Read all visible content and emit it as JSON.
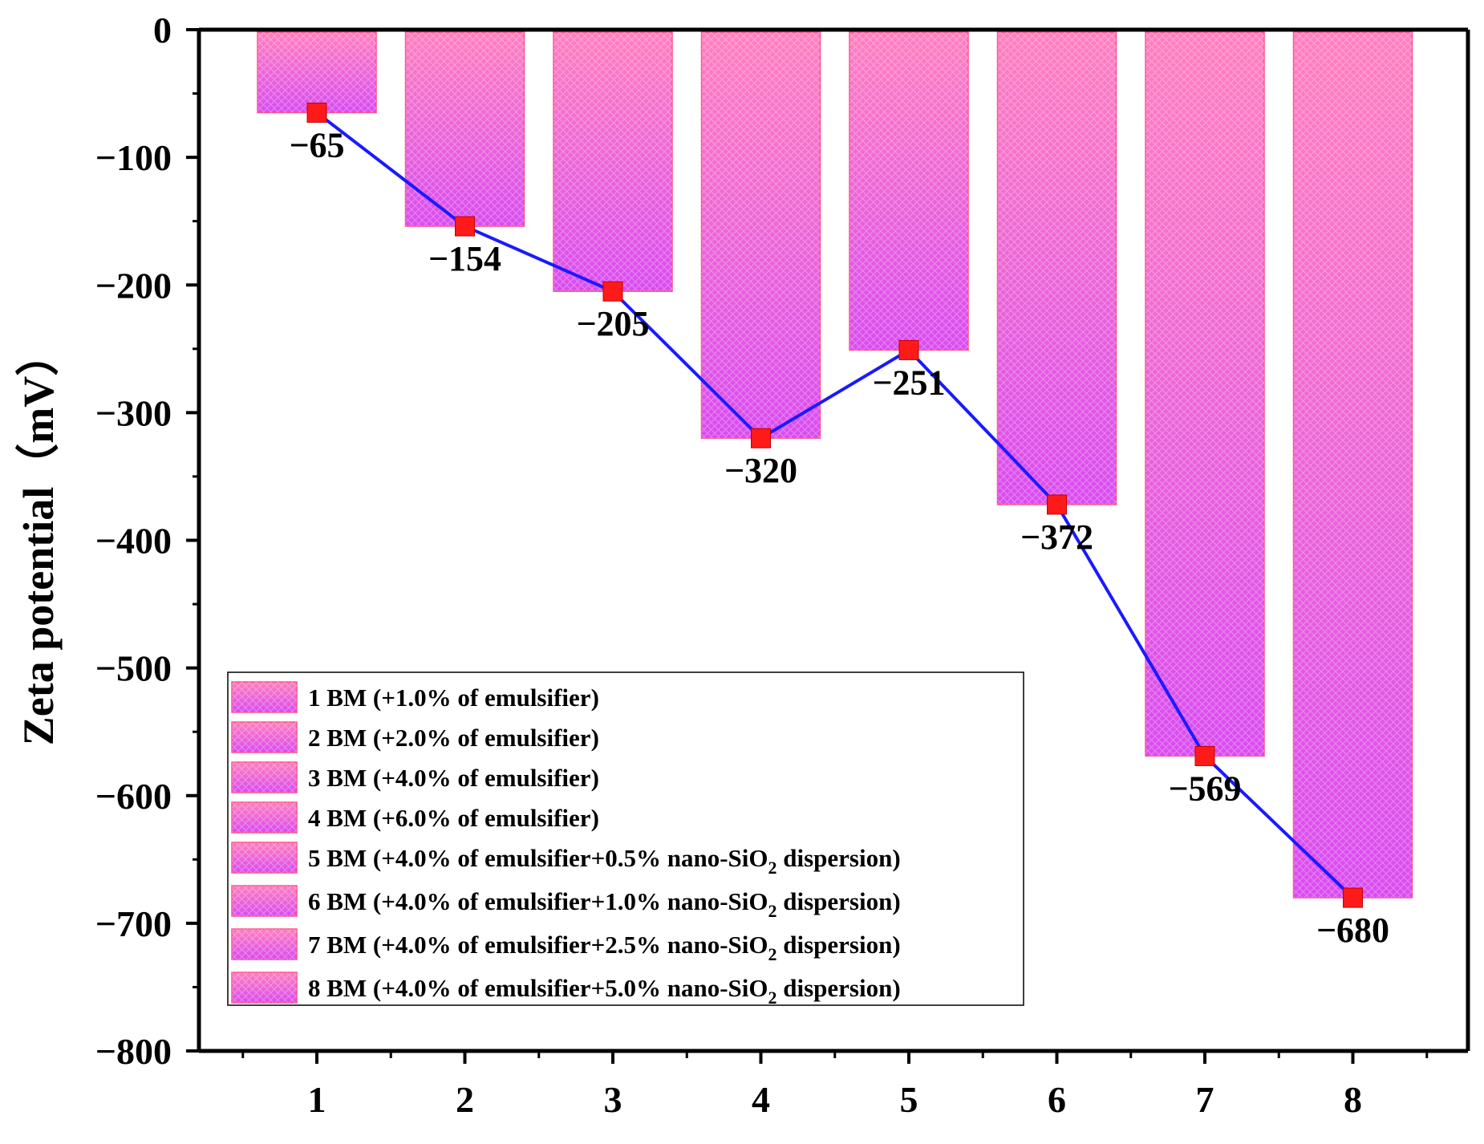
{
  "chart_data": {
    "type": "bar",
    "title": "",
    "xlabel": "",
    "ylabel": "Zeta potential（mV）",
    "ylim": [
      -800,
      0
    ],
    "yticks": [
      0,
      -100,
      -200,
      -300,
      -400,
      -500,
      -600,
      -700,
      -800
    ],
    "ytick_labels": [
      "0",
      "−100",
      "−200",
      "−300",
      "−400",
      "−500",
      "−600",
      "−700",
      "−800"
    ],
    "categories": [
      "1",
      "2",
      "3",
      "4",
      "5",
      "6",
      "7",
      "8"
    ],
    "values": [
      -65,
      -154,
      -205,
      -320,
      -251,
      -372,
      -569,
      -680
    ],
    "data_labels": [
      "−65",
      "−154",
      "−205",
      "−320",
      "−251",
      "−372",
      "−569",
      "−680"
    ],
    "overlay_line": {
      "type": "line",
      "marker": "square",
      "values": [
        -65,
        -154,
        -205,
        -320,
        -251,
        -372,
        -569,
        -680
      ]
    },
    "legend": {
      "placement": "lower-left",
      "entries": [
        {
          "number": "1",
          "text": " BM (+1.0% of emulsifier)"
        },
        {
          "number": "2",
          "text": " BM (+2.0% of emulsifier)"
        },
        {
          "number": "3",
          "text": " BM (+4.0% of emulsifier)"
        },
        {
          "number": "4",
          "text": " BM (+6.0% of emulsifier)"
        },
        {
          "number": "5",
          "text": " BM (+4.0% of emulsifier+0.5% nano-SiO",
          "sub": "2",
          "tail": " dispersion)"
        },
        {
          "number": "6",
          "text": " BM (+4.0% of emulsifier+1.0% nano-SiO",
          "sub": "2",
          "tail": " dispersion)"
        },
        {
          "number": "7",
          "text": " BM (+4.0% of emulsifier+2.5% nano-SiO",
          "sub": "2",
          "tail": " dispersion)"
        },
        {
          "number": "8",
          "text": " BM (+4.0% of emulsifier+5.0% nano-SiO",
          "sub": "2",
          "tail": " dispersion)"
        }
      ]
    },
    "colors": {
      "bar_top": "#ff7fbf",
      "bar_bottom": "#d94cf0",
      "bar_edge": "#ff4f8a",
      "line": "#1a1aff",
      "marker": "#ff1a1a"
    }
  }
}
